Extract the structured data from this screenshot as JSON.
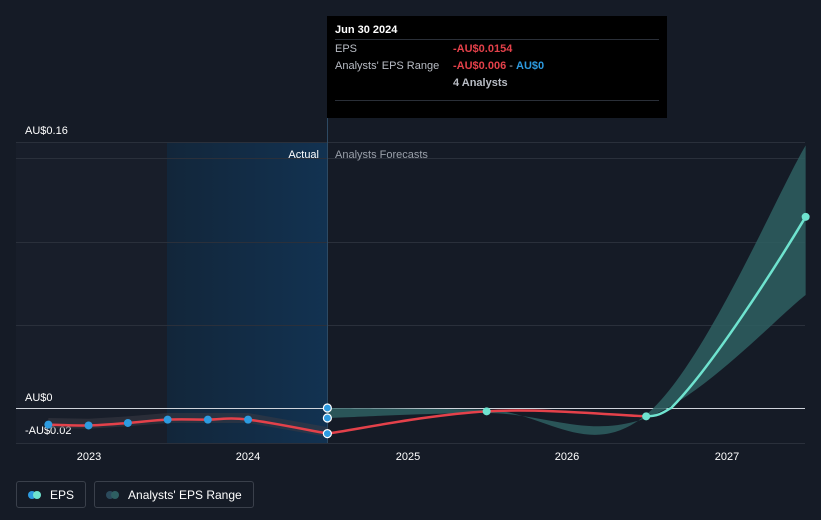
{
  "chart_data": {
    "type": "line",
    "x_axis": {
      "ticks": [
        "2023",
        "2024",
        "2025",
        "2026",
        "2027"
      ]
    },
    "y_axis": {
      "ticks": [
        {
          "label": "AU$0.16",
          "value": 0.16
        },
        {
          "label": "AU$0",
          "value": 0
        },
        {
          "label": "-AU$0.02",
          "value": -0.02
        }
      ],
      "ylim": [
        -0.02,
        0.16
      ]
    },
    "regions": {
      "actual_label": "Actual",
      "forecast_label": "Analysts Forecasts"
    },
    "series": [
      {
        "name": "EPS",
        "color": "#e4414a",
        "actual_points": [
          {
            "x": "2022-09-30",
            "y": -0.01
          },
          {
            "x": "2022-12-31",
            "y": -0.0105
          },
          {
            "x": "2023-03-31",
            "y": -0.009
          },
          {
            "x": "2023-06-30",
            "y": -0.007
          },
          {
            "x": "2023-09-30",
            "y": -0.007
          },
          {
            "x": "2023-12-31",
            "y": -0.007
          },
          {
            "x": "2024-06-30",
            "y": -0.0154
          }
        ],
        "forecast_points": [
          {
            "x": "2024-06-30",
            "y": -0.0154
          },
          {
            "x": "2025-06-30",
            "y": -0.002
          },
          {
            "x": "2026-06-30",
            "y": -0.005
          },
          {
            "x": "2027-06-30",
            "y": 0.115
          }
        ],
        "forecast_color": "#6fe3cf"
      },
      {
        "name": "Analysts' EPS Range",
        "color": "#2e5f62",
        "range": [
          {
            "x": "2024-06-30",
            "low": -0.006,
            "high": 0
          },
          {
            "x": "2025-06-30",
            "low": -0.003,
            "high": -0.001
          },
          {
            "x": "2026-06-30",
            "low": -0.006,
            "high": -0.004
          },
          {
            "x": "2027-06-30",
            "low": 0.068,
            "high": 0.158
          }
        ]
      }
    ]
  },
  "tooltip": {
    "date": "Jun 30 2024",
    "eps_label": "EPS",
    "eps_value": "-AU$0.0154",
    "range_label": "Analysts' EPS Range",
    "range_low": "-AU$0.006",
    "range_sep": "-",
    "range_high": "AU$0",
    "analysts": "4 Analysts"
  },
  "legend": {
    "eps_label": "EPS",
    "range_label": "Analysts' EPS Range"
  },
  "colors": {
    "background": "#151b26",
    "eps_actual": "#e4414a",
    "eps_forecast": "#6fe3cf",
    "range_fill": "#2e5f62",
    "highlight_band": "#13293f",
    "dot_actual": "#2d9be0"
  }
}
